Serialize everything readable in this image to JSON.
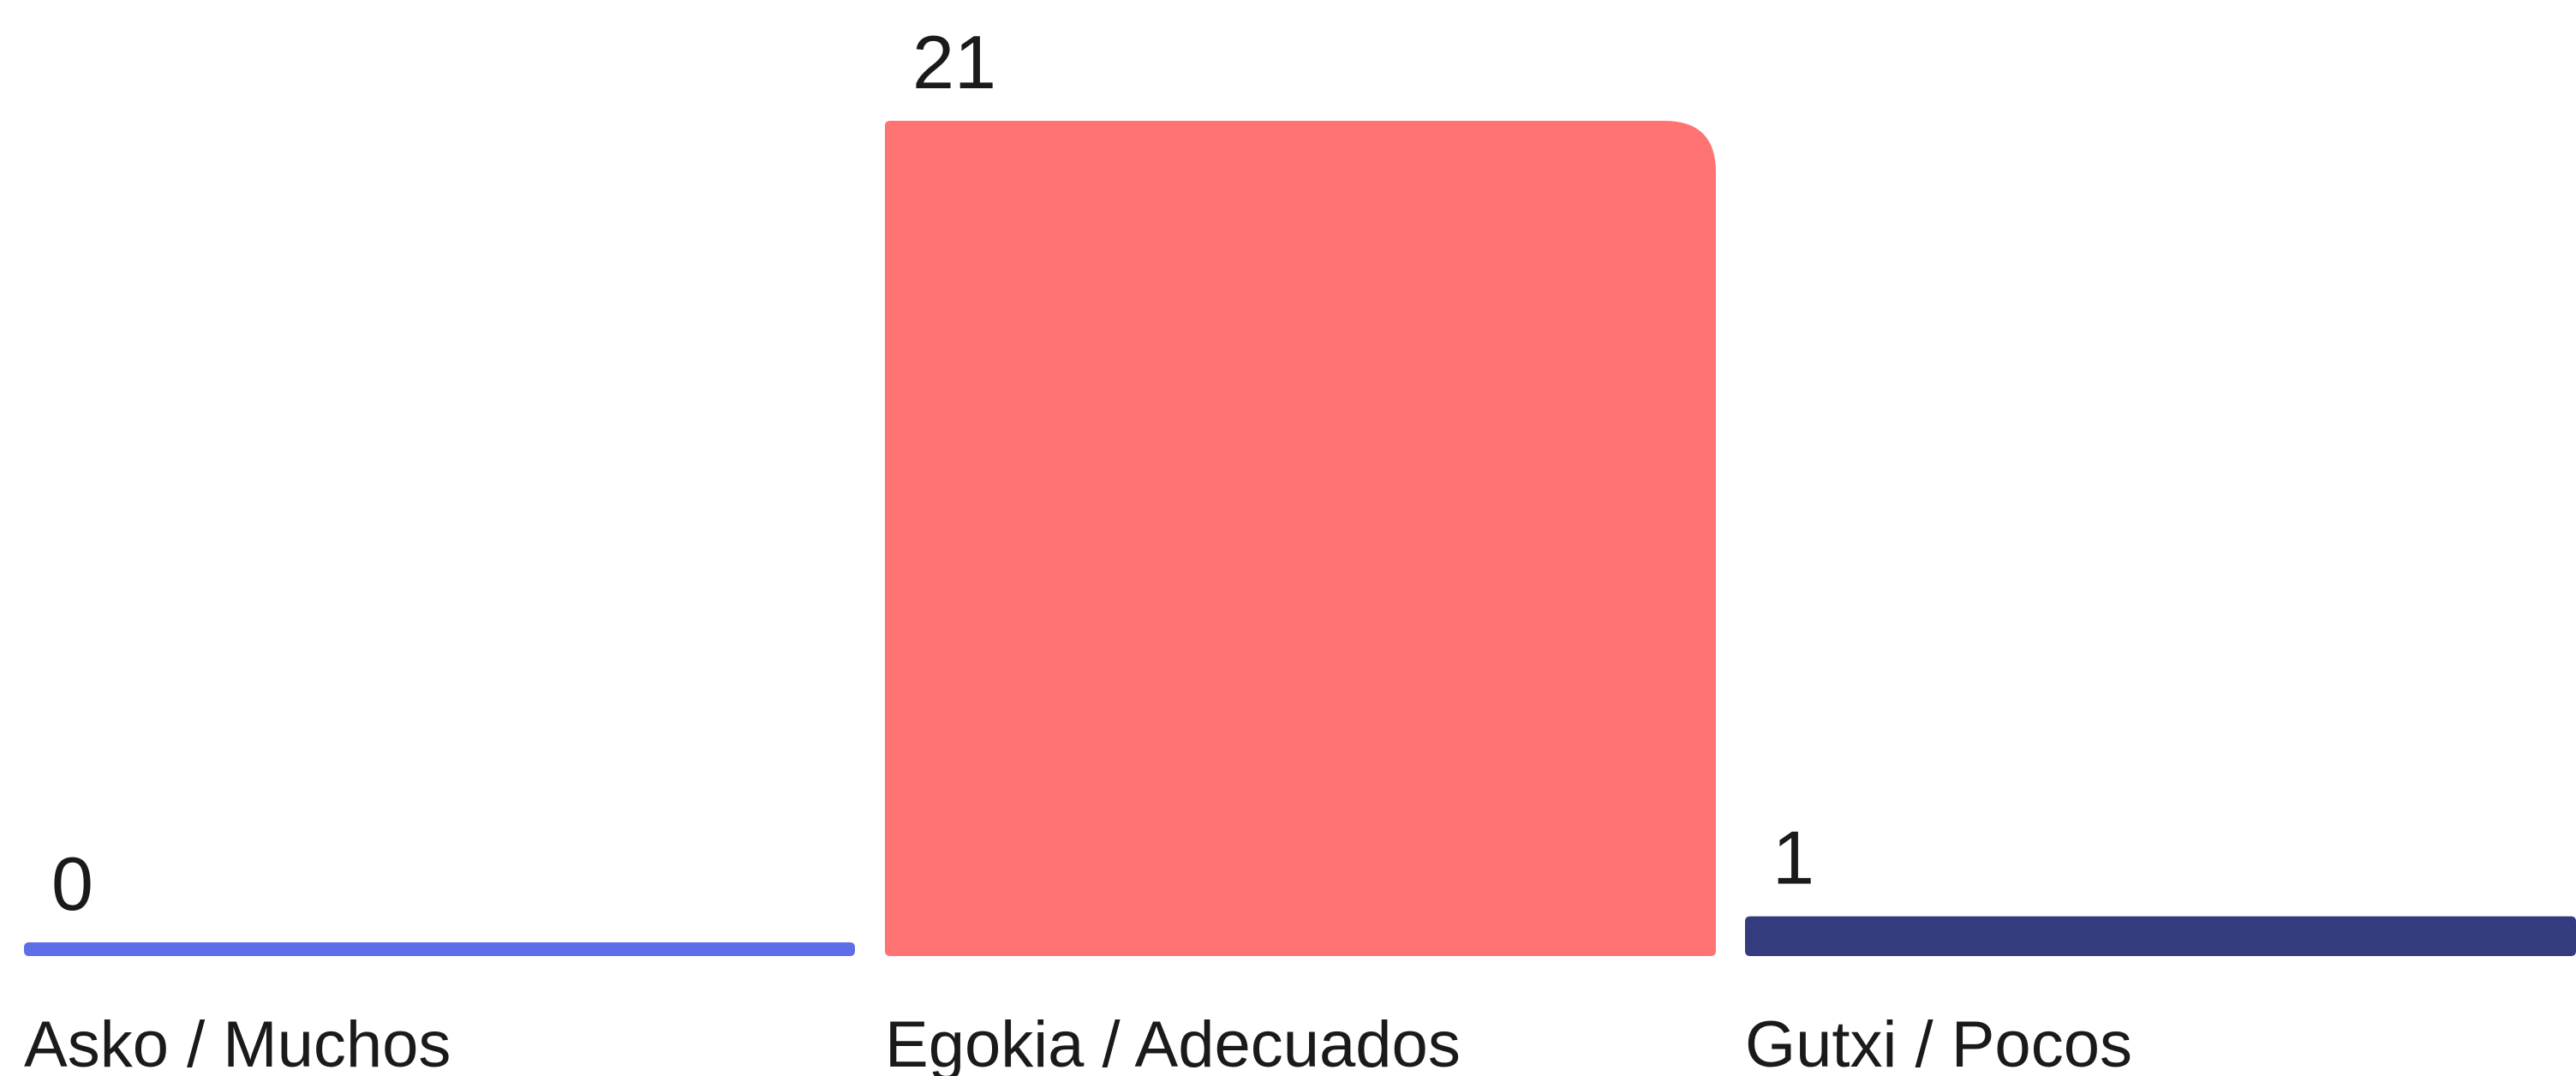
{
  "chart_data": {
    "type": "bar",
    "categories": [
      "Asko / Muchos",
      "Egokia / Adecuados",
      "Gutxi / Pocos"
    ],
    "values": [
      0,
      21,
      1
    ],
    "value_labels": [
      "0",
      "21",
      "1"
    ],
    "colors": [
      "#5e6ee8",
      "#ff7472",
      "#343b7e"
    ],
    "title": "",
    "xlabel": "",
    "ylabel": "",
    "ylim": [
      0,
      21
    ],
    "grid": false
  }
}
